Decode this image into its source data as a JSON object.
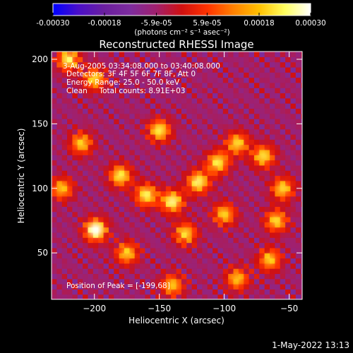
{
  "colorbar": {
    "ticks": [
      "-0.00030",
      "-0.00018",
      "-5.9e-05",
      "5.9e-05",
      "0.00018",
      "0.00030"
    ],
    "tick_values": [
      -0.0003,
      -0.00018,
      -5.9e-05,
      5.9e-05,
      0.00018,
      0.0003
    ],
    "unit_label": "(photons cm⁻² s⁻¹ asec⁻²)",
    "range": [
      -0.0003,
      0.0003
    ],
    "colors": [
      "#0000ff",
      "#4b0fc8",
      "#6a1f9e",
      "#7d2c9e",
      "#a0206e",
      "#d01010",
      "#ff3300",
      "#ff8000",
      "#ffc000",
      "#ffff60",
      "#ffffff"
    ]
  },
  "chart_data": {
    "type": "heatmap",
    "title": "Reconstructed RHESSI Image",
    "xlabel": "Heliocentric X (arcsec)",
    "ylabel": "Heliocentric Y (arcsec)",
    "xlim": [
      -233,
      -40
    ],
    "ylim": [
      14,
      206
    ],
    "xticks": [
      -200,
      -150,
      -100,
      -50
    ],
    "yticks": [
      50,
      100,
      150,
      200
    ],
    "annotations": [
      "3-Aug-2005 03:34:08.000 to 03:40:08.000",
      "Detectors: 3F 4F 5F 6F 7F 8F, Att 0",
      "Energy Range: 25.0 - 50.0 keV",
      "Clean     Total counts: 8.91E+03"
    ],
    "peak_text": "Position of Peak = [-199,68]",
    "peak": [
      -199,
      68
    ],
    "sources": [
      {
        "x": -199,
        "y": 68,
        "flux": 0.0003
      },
      {
        "x": -180,
        "y": 110,
        "flux": 0.00024
      },
      {
        "x": -160,
        "y": 95,
        "flux": 0.00025
      },
      {
        "x": -140,
        "y": 90,
        "flux": 0.00027
      },
      {
        "x": -120,
        "y": 105,
        "flux": 0.00026
      },
      {
        "x": -105,
        "y": 120,
        "flux": 0.00024
      },
      {
        "x": -90,
        "y": 135,
        "flux": 0.00022
      },
      {
        "x": -70,
        "y": 125,
        "flux": 0.00023
      },
      {
        "x": -55,
        "y": 100,
        "flux": 0.00022
      },
      {
        "x": -60,
        "y": 75,
        "flux": 0.00022
      },
      {
        "x": -65,
        "y": 45,
        "flux": 0.00021
      },
      {
        "x": -100,
        "y": 80,
        "flux": 0.00021
      },
      {
        "x": -130,
        "y": 65,
        "flux": 0.00022
      },
      {
        "x": -175,
        "y": 50,
        "flux": 0.00021
      },
      {
        "x": -150,
        "y": 145,
        "flux": 0.00024
      },
      {
        "x": -210,
        "y": 135,
        "flux": 0.00021
      },
      {
        "x": -220,
        "y": 200,
        "flux": 0.00025
      },
      {
        "x": -200,
        "y": 185,
        "flux": 0.00022
      },
      {
        "x": -225,
        "y": 100,
        "flux": 0.0002
      },
      {
        "x": -90,
        "y": 30,
        "flux": 0.0002
      },
      {
        "x": -140,
        "y": 25,
        "flux": 0.0002
      }
    ]
  },
  "footer": {
    "timestamp": "1-May-2022 13:13"
  }
}
